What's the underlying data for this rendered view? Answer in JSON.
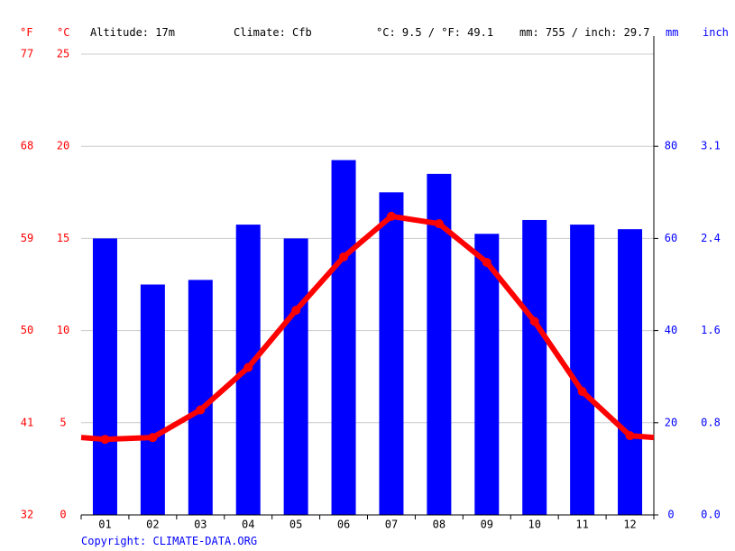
{
  "header": {
    "f_unit": "°F",
    "c_unit": "°C",
    "altitude": "Altitude: 17m",
    "climate": "Climate: Cfb",
    "temp_avg": "°C: 9.5 / °F: 49.1",
    "precip_total": "mm: 755 / inch: 29.7",
    "mm_unit": "mm",
    "inch_unit": "inch"
  },
  "copyright": "Copyright: CLIMATE-DATA.ORG",
  "colors": {
    "temperature": "#ff0000",
    "precipitation": "#0000ff",
    "grid": "#cccccc",
    "axis": "#000000"
  },
  "chart_data": {
    "type": "bar",
    "categories": [
      "01",
      "02",
      "03",
      "04",
      "05",
      "06",
      "07",
      "08",
      "09",
      "10",
      "11",
      "12"
    ],
    "series": [
      {
        "kind": "bar",
        "unit": "mm",
        "axis": "right",
        "values": [
          60,
          50,
          51,
          63,
          60,
          77,
          70,
          74,
          61,
          64,
          63,
          62
        ]
      },
      {
        "kind": "line",
        "unit": "°C",
        "axis": "left",
        "values": [
          4.1,
          4.2,
          5.7,
          8.0,
          11.1,
          14.0,
          16.2,
          15.8,
          13.7,
          10.5,
          6.7,
          4.3
        ]
      }
    ],
    "line_edge_values": [
      4.2,
      4.2
    ],
    "y_left": {
      "unit": "°C",
      "ylim": [
        0,
        25
      ],
      "ticks": [
        0,
        5,
        10,
        15,
        20,
        25
      ],
      "labels": [
        "0",
        "5",
        "10",
        "15",
        "20",
        "25"
      ]
    },
    "y_left_f": {
      "unit": "°F",
      "labels": [
        "32",
        "41",
        "50",
        "59",
        "68",
        "77"
      ]
    },
    "y_right": {
      "unit": "mm",
      "ylim": [
        0,
        100
      ],
      "ticks": [
        0,
        20,
        40,
        60,
        80
      ],
      "labels": [
        "0",
        "20",
        "40",
        "60",
        "80"
      ]
    },
    "y_right_inch": {
      "unit": "inch",
      "labels": [
        "0.0",
        "0.8",
        "1.6",
        "2.4",
        "3.1"
      ]
    },
    "grid": true
  }
}
